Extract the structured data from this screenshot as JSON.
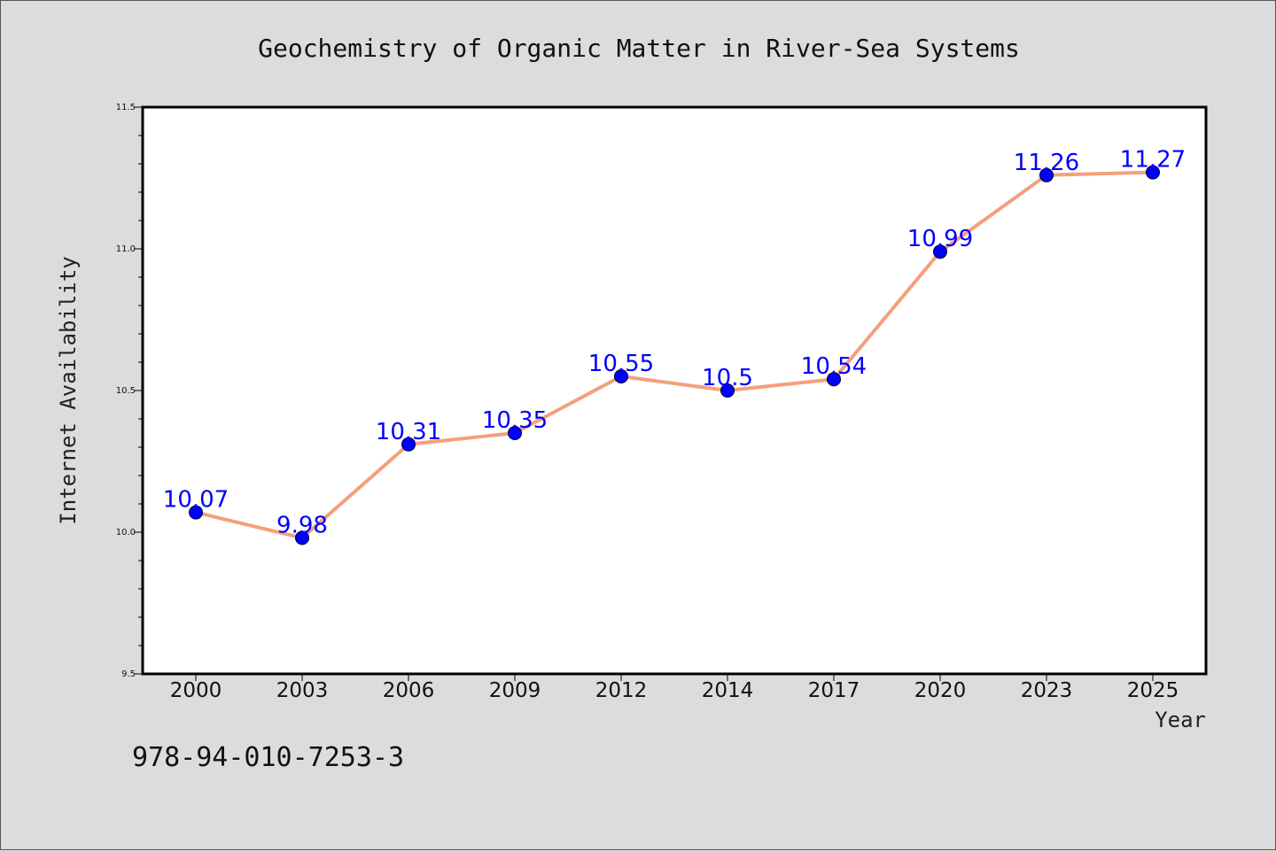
{
  "colors": {
    "background": "#dcdcdc",
    "plot_background": "#ffffff",
    "line": "#f4a07c",
    "marker": "#0000ff",
    "data_label": "#0000ff"
  },
  "chart_data": {
    "type": "line",
    "title": "Geochemistry of Organic Matter in River-Sea Systems",
    "xlabel": "Year",
    "ylabel": "Internet Availability",
    "categories": [
      "2000",
      "2003",
      "2006",
      "2009",
      "2012",
      "2014",
      "2017",
      "2020",
      "2023",
      "2025"
    ],
    "series": [
      {
        "values": [
          10.07,
          9.98,
          10.31,
          10.35,
          10.55,
          10.5,
          10.54,
          10.99,
          11.26,
          11.27
        ],
        "labels": [
          "10.07",
          "9.98",
          "10.31",
          "10.35",
          "10.55",
          "10.5",
          "10.54",
          "10.99",
          "11.26",
          "11.27"
        ]
      }
    ],
    "ylim": [
      9.5,
      11.5
    ],
    "yticks": [
      "9.5",
      "10.0",
      "10.5",
      "11.0",
      "11.5"
    ],
    "grid": false,
    "legend": "none"
  },
  "footer": {
    "isbn": "978-94-010-7253-3"
  }
}
